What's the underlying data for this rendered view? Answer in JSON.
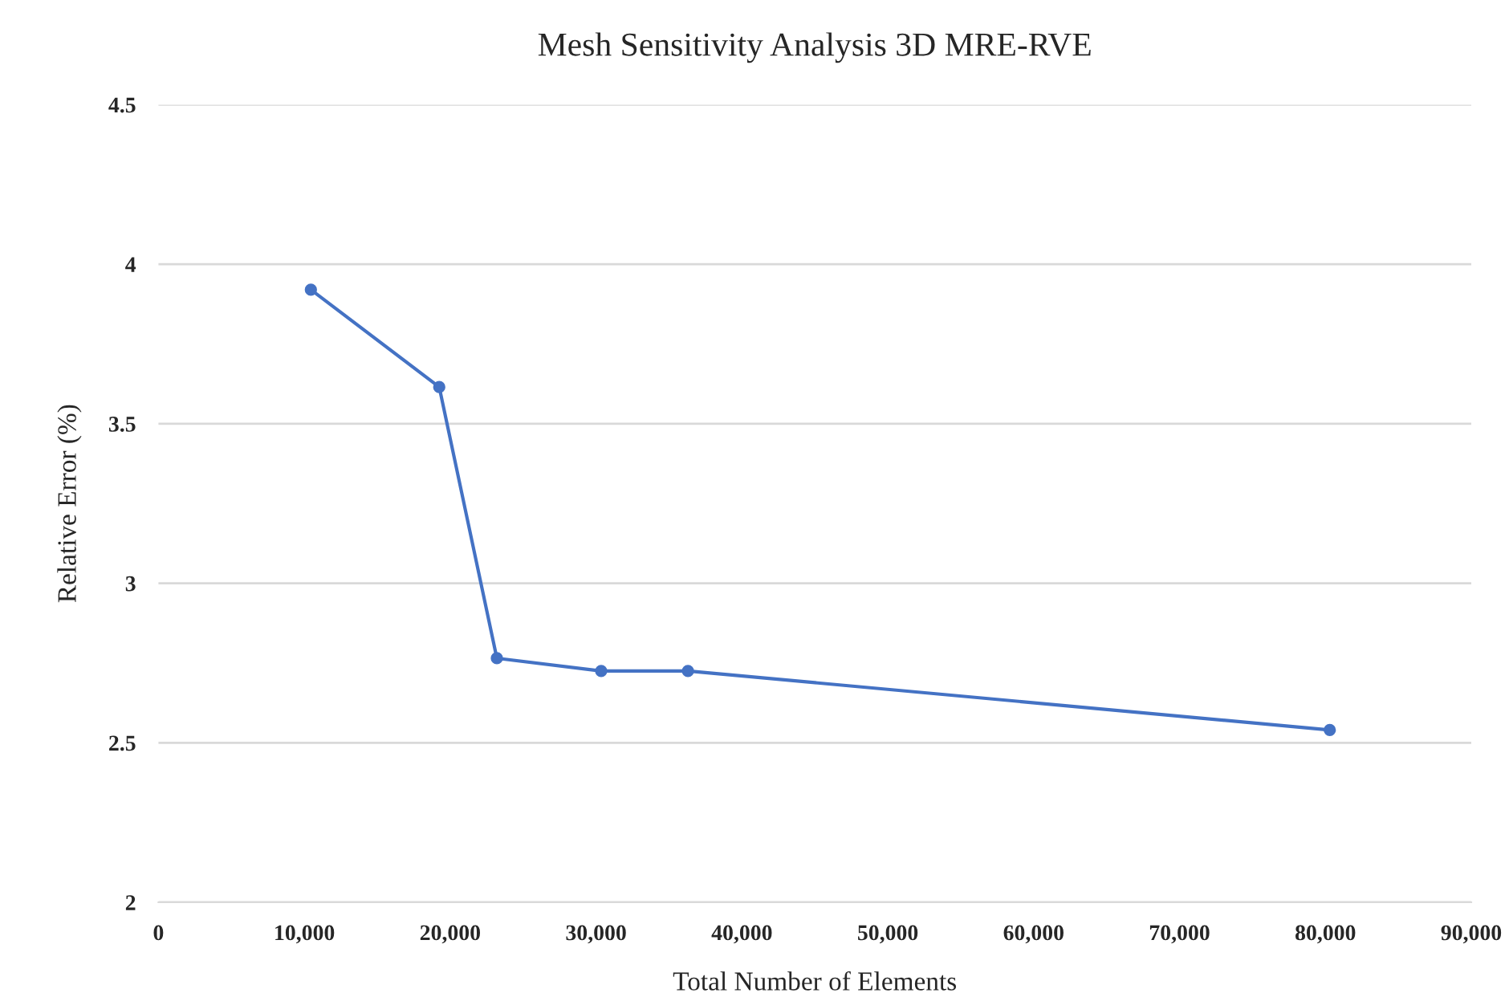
{
  "chart_data": {
    "type": "line",
    "title": "Mesh Sensitivity Analysis 3D MRE-RVE",
    "xlabel": "Total Number of Elements",
    "ylabel": "Relative Error (%)",
    "x": [
      10450,
      19250,
      23200,
      30350,
      36300,
      80300
    ],
    "series": [
      {
        "color": "#4472c4",
        "values": [
          3.92,
          3.615,
          2.765,
          2.725,
          2.725,
          2.54
        ]
      }
    ],
    "xlim": [
      0,
      90000
    ],
    "xticks": [
      {
        "value": 0,
        "label": "0"
      },
      {
        "value": 10000,
        "label": "10,000"
      },
      {
        "value": 20000,
        "label": "20,000"
      },
      {
        "value": 30000,
        "label": "30,000"
      },
      {
        "value": 40000,
        "label": "40,000"
      },
      {
        "value": 50000,
        "label": "50,000"
      },
      {
        "value": 60000,
        "label": "60,000"
      },
      {
        "value": 70000,
        "label": "70,000"
      },
      {
        "value": 80000,
        "label": "80,000"
      },
      {
        "value": 90000,
        "label": "90,000"
      }
    ],
    "ylim": [
      2,
      4.5
    ],
    "yticks": [
      2,
      2.5,
      3,
      3.5,
      4,
      4.5
    ],
    "grid": "y",
    "marker": "circle",
    "line_style": "solid"
  }
}
